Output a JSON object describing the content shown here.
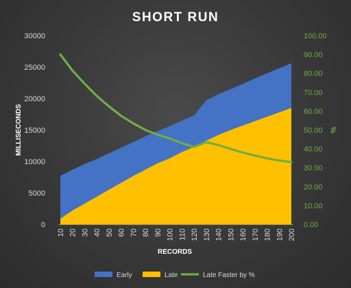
{
  "chart_data": {
    "type": "area+line",
    "title": "SHORT RUN",
    "xlabel": "RECORDS",
    "ylabel": "MILLISECONDS",
    "y2label": "%",
    "categories": [
      "10",
      "20",
      "30",
      "40",
      "50",
      "60",
      "70",
      "80",
      "90",
      "100",
      "110",
      "120",
      "130",
      "140",
      "150",
      "160",
      "170",
      "180",
      "190",
      "200"
    ],
    "ylim": [
      0,
      30000
    ],
    "yticks": [
      "0",
      "5000",
      "10000",
      "15000",
      "20000",
      "25000",
      "30000"
    ],
    "y2lim": [
      0,
      100
    ],
    "y2ticks": [
      "0.00",
      "10.00",
      "20.00",
      "30.00",
      "40.00",
      "50.00",
      "60.00",
      "70.00",
      "80.00",
      "90.00",
      "100.00"
    ],
    "series": [
      {
        "name": "Early",
        "kind": "area",
        "axis": "left",
        "color": "#4472c4",
        "values": [
          7700,
          8700,
          9600,
          10400,
          11300,
          12200,
          13100,
          14000,
          14800,
          15600,
          16500,
          17300,
          19700,
          20700,
          21500,
          22300,
          23200,
          24000,
          24800,
          25600
        ]
      },
      {
        "name": "Late",
        "kind": "area",
        "axis": "left",
        "color": "#ffc000",
        "values": [
          900,
          2200,
          3300,
          4400,
          5500,
          6600,
          7700,
          8700,
          9700,
          10500,
          11500,
          12300,
          13300,
          14200,
          15000,
          15700,
          16400,
          17100,
          17800,
          18500
        ]
      },
      {
        "name": "Late Faster by %",
        "kind": "line",
        "axis": "right",
        "color": "#70ad47",
        "values": [
          90.0,
          81.5,
          74.5,
          68.0,
          62.5,
          57.5,
          53.5,
          50.0,
          47.5,
          45.5,
          43.0,
          41.0,
          43.5,
          42.0,
          40.0,
          38.0,
          36.5,
          35.0,
          33.8,
          33.0
        ]
      }
    ],
    "legend_position": "bottom",
    "grid": false
  },
  "colors": {
    "axis_text": "#d9d9d9",
    "right_axis_text": "#70ad47",
    "title": "#ffffff"
  }
}
